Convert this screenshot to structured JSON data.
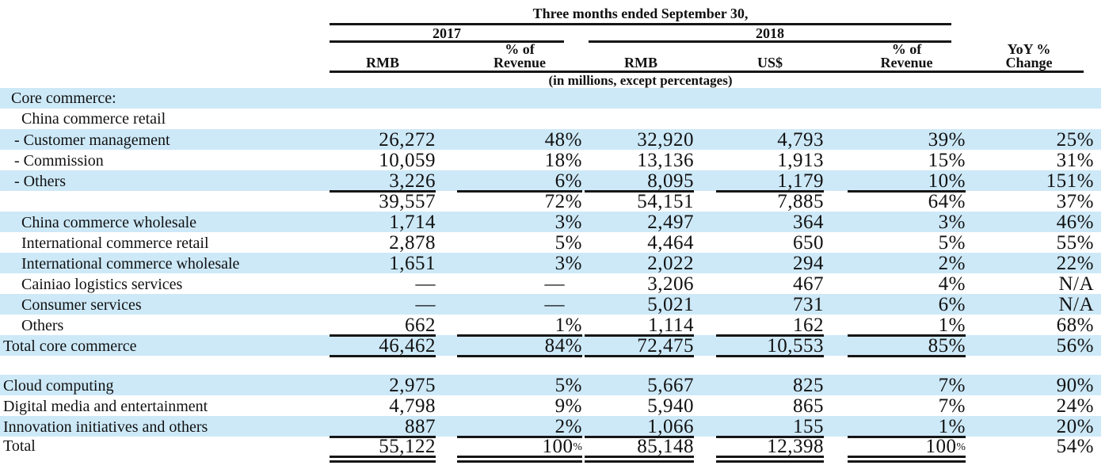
{
  "table": {
    "title": "Three months ended September 30,",
    "subtitle": "(in millions, except percentages)",
    "periods": {
      "y2017": "2017",
      "y2018": "2018"
    },
    "columns": {
      "rmb2017": "RMB",
      "pct2017": [
        "% of",
        "Revenue"
      ],
      "rmb2018": "RMB",
      "usd2018": "US$",
      "pct2018": [
        "% of",
        "Revenue"
      ],
      "yoy": [
        "YoY %",
        "Change"
      ]
    },
    "colors": {
      "stripe": "#cde9f8",
      "rule": "#161616",
      "text": "#111111"
    },
    "rows": [
      {
        "label": "Core commerce:",
        "cells": [
          "",
          "",
          "",
          "",
          "",
          ""
        ]
      },
      {
        "label": "China commerce retail",
        "cells": [
          "",
          "",
          "",
          "",
          "",
          ""
        ]
      },
      {
        "label": "- Customer management",
        "cells": [
          "26,272",
          "48%",
          "32,920",
          "4,793",
          "39%",
          "25%"
        ]
      },
      {
        "label": "- Commission",
        "cells": [
          "10,059",
          "18%",
          "13,136",
          "1,913",
          "15%",
          "31%"
        ]
      },
      {
        "label": "- Others",
        "cells": [
          "3,226",
          "6%",
          "8,095",
          "1,179",
          "10%",
          "151%"
        ]
      },
      {
        "label": "",
        "cells": [
          "39,557",
          "72%",
          "54,151",
          "7,885",
          "64%",
          "37%"
        ]
      },
      {
        "label": "China commerce wholesale",
        "cells": [
          "1,714",
          "3%",
          "2,497",
          "364",
          "3%",
          "46%"
        ]
      },
      {
        "label": "International commerce retail",
        "cells": [
          "2,878",
          "5%",
          "4,464",
          "650",
          "5%",
          "55%"
        ]
      },
      {
        "label": "International commerce wholesale",
        "cells": [
          "1,651",
          "3%",
          "2,022",
          "294",
          "2%",
          "22%"
        ]
      },
      {
        "label": "Cainiao logistics services",
        "cells": [
          "—",
          "—",
          "3,206",
          "467",
          "4%",
          "N/A"
        ]
      },
      {
        "label": "Consumer services",
        "cells": [
          "—",
          "—",
          "5,021",
          "731",
          "6%",
          "N/A"
        ]
      },
      {
        "label": "Others",
        "cells": [
          "662",
          "1%",
          "1,114",
          "162",
          "1%",
          "68%"
        ]
      },
      {
        "label": "Total core commerce",
        "cells": [
          "46,462",
          "84%",
          "72,475",
          "10,553",
          "85%",
          "56%"
        ]
      },
      {
        "label": "",
        "cells": [
          "",
          "",
          "",
          "",
          "",
          ""
        ]
      },
      {
        "label": "Cloud computing",
        "cells": [
          "2,975",
          "5%",
          "5,667",
          "825",
          "7%",
          "90%"
        ]
      },
      {
        "label": "Digital media and entertainment",
        "cells": [
          "4,798",
          "9%",
          "5,940",
          "865",
          "7%",
          "24%"
        ]
      },
      {
        "label": "Innovation initiatives and others",
        "cells": [
          "887",
          "2%",
          "1,066",
          "155",
          "1%",
          "20%"
        ]
      },
      {
        "label": "Total",
        "cells": [
          "55,122",
          "100%",
          "85,148",
          "12,398",
          "100%",
          "54%"
        ]
      }
    ]
  }
}
